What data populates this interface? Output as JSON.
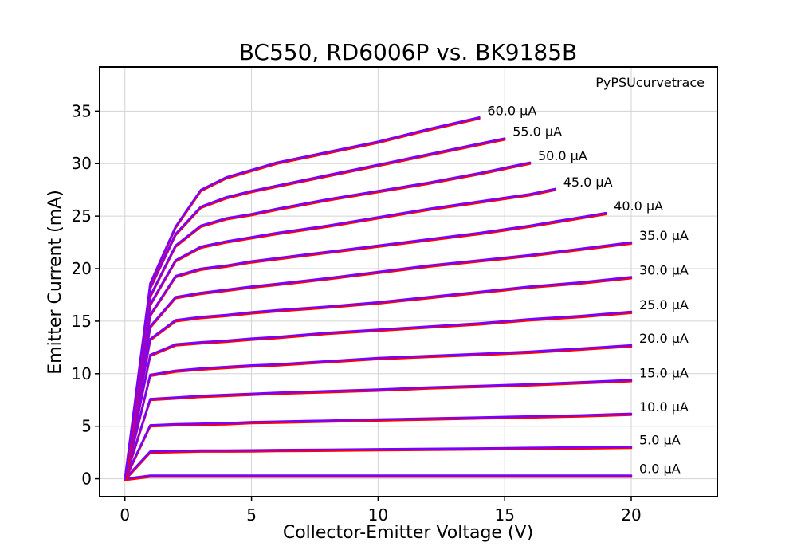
{
  "chart_data": {
    "type": "line",
    "title": "BC550, RD6006P vs. BK9185B",
    "xlabel": "Collector-Emitter Voltage (V)",
    "ylabel": "Emitter Current (mA)",
    "annotation": "PyPSUcurvetrace",
    "xlim": [
      -1,
      23.4
    ],
    "ylim": [
      -1.7,
      39.2
    ],
    "xticks": [
      0,
      5,
      10,
      15,
      20
    ],
    "yticks": [
      0,
      5,
      10,
      15,
      20,
      25,
      30,
      35
    ],
    "grid": true,
    "reference_color": "#ff0000",
    "measured_color": "#7a00ff",
    "curves": [
      {
        "label": "0.0 μA",
        "x": [
          0,
          1,
          2,
          3,
          4,
          5,
          10,
          15,
          20
        ],
        "y": [
          0,
          0.3,
          0.3,
          0.3,
          0.3,
          0.3,
          0.3,
          0.3,
          0.3
        ]
      },
      {
        "label": "5.0 μA",
        "x": [
          0,
          1,
          2,
          3,
          4,
          5,
          6,
          8,
          10,
          12,
          14,
          16,
          18,
          20
        ],
        "y": [
          0,
          2.6,
          2.65,
          2.7,
          2.7,
          2.72,
          2.75,
          2.78,
          2.82,
          2.86,
          2.9,
          2.95,
          3.0,
          3.05
        ]
      },
      {
        "label": "10.0 μA",
        "x": [
          0,
          1,
          2,
          3,
          4,
          5,
          6,
          8,
          10,
          12,
          14,
          16,
          18,
          20
        ],
        "y": [
          0,
          5.1,
          5.2,
          5.25,
          5.3,
          5.4,
          5.45,
          5.55,
          5.65,
          5.75,
          5.85,
          5.95,
          6.05,
          6.2
        ]
      },
      {
        "label": "15.0 μA",
        "x": [
          0,
          1,
          2,
          3,
          4,
          5,
          6,
          8,
          10,
          12,
          14,
          16,
          18,
          20
        ],
        "y": [
          0,
          7.6,
          7.75,
          7.9,
          8.0,
          8.1,
          8.2,
          8.35,
          8.5,
          8.7,
          8.85,
          9.0,
          9.2,
          9.4
        ]
      },
      {
        "label": "20.0 μA",
        "x": [
          0,
          1,
          2,
          3,
          4,
          5,
          6,
          8,
          10,
          12,
          14,
          16,
          18,
          20
        ],
        "y": [
          0,
          9.9,
          10.3,
          10.5,
          10.65,
          10.8,
          10.9,
          11.2,
          11.5,
          11.7,
          11.9,
          12.1,
          12.4,
          12.7
        ]
      },
      {
        "label": "25.0 μA",
        "x": [
          0,
          1,
          2,
          3,
          4,
          5,
          6,
          8,
          10,
          12,
          14,
          16,
          18,
          20
        ],
        "y": [
          0,
          11.8,
          12.8,
          13.0,
          13.15,
          13.35,
          13.5,
          13.9,
          14.2,
          14.5,
          14.8,
          15.2,
          15.5,
          15.9
        ]
      },
      {
        "label": "30.0 μA",
        "x": [
          0,
          1,
          2,
          3,
          4,
          5,
          6,
          8,
          10,
          12,
          14,
          16,
          18,
          20
        ],
        "y": [
          0,
          13.3,
          15.1,
          15.4,
          15.6,
          15.85,
          16.05,
          16.4,
          16.8,
          17.3,
          17.8,
          18.3,
          18.7,
          19.2
        ]
      },
      {
        "label": "35.0 μA",
        "x": [
          0,
          1,
          2,
          3,
          4,
          5,
          6,
          8,
          10,
          12,
          14,
          16,
          18,
          20
        ],
        "y": [
          0,
          14.5,
          17.3,
          17.7,
          18.0,
          18.3,
          18.55,
          19.1,
          19.7,
          20.3,
          20.8,
          21.3,
          21.9,
          22.5
        ]
      },
      {
        "label": "40.0 μA",
        "x": [
          0,
          1,
          2,
          3,
          4,
          5,
          6,
          8,
          10,
          12,
          14,
          16,
          17,
          18,
          19
        ],
        "y": [
          0,
          15.6,
          19.3,
          20.0,
          20.3,
          20.7,
          21.0,
          21.6,
          22.2,
          22.8,
          23.4,
          24.1,
          24.5,
          24.9,
          25.3
        ]
      },
      {
        "label": "45.0 μA",
        "x": [
          0,
          1,
          2,
          3,
          4,
          5,
          6,
          8,
          10,
          12,
          14,
          16,
          17
        ],
        "y": [
          0,
          16.6,
          20.8,
          22.1,
          22.6,
          23.0,
          23.4,
          24.1,
          24.9,
          25.7,
          26.4,
          27.1,
          27.6
        ]
      },
      {
        "label": "50.0 μA",
        "x": [
          0,
          1,
          2,
          3,
          4,
          5,
          6,
          8,
          10,
          12,
          14,
          16
        ],
        "y": [
          0,
          17.4,
          22.2,
          24.1,
          24.8,
          25.2,
          25.7,
          26.6,
          27.4,
          28.2,
          29.1,
          30.1
        ]
      },
      {
        "label": "55.0 μA",
        "x": [
          0,
          1,
          2,
          3,
          4,
          5,
          6,
          8,
          10,
          12,
          14,
          15
        ],
        "y": [
          0,
          18.2,
          23.3,
          25.9,
          26.8,
          27.4,
          27.9,
          28.9,
          29.9,
          30.9,
          31.9,
          32.4
        ]
      },
      {
        "label": "60.0 μA",
        "x": [
          0,
          1,
          2,
          3,
          4,
          5,
          6,
          8,
          10,
          12,
          14
        ],
        "y": [
          0,
          18.6,
          24.0,
          27.5,
          28.7,
          29.4,
          30.1,
          31.1,
          32.1,
          33.3,
          34.4
        ]
      }
    ]
  }
}
